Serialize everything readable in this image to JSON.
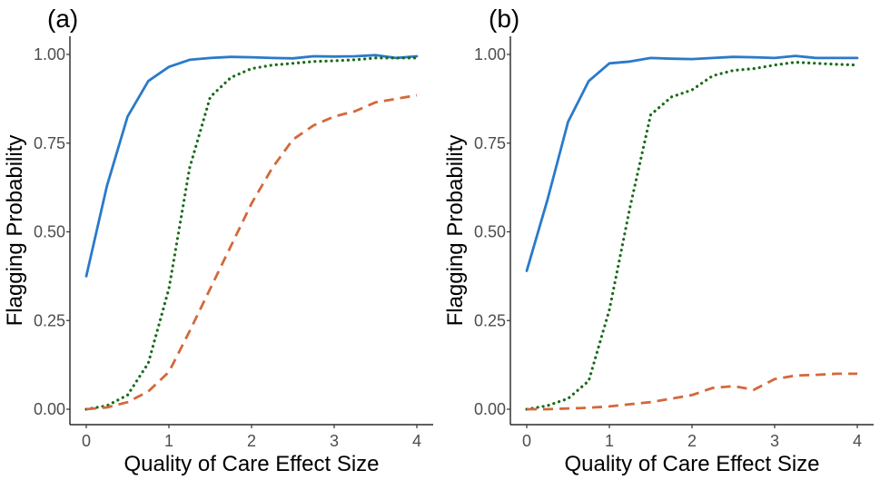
{
  "chart_data": [
    {
      "panel": "(a)",
      "type": "line",
      "xlabel": "Quality of Care Effect Size",
      "ylabel": "Flagging Probability",
      "xlim": [
        0,
        4
      ],
      "ylim": [
        0,
        1
      ],
      "x_ticks": [
        "0",
        "1",
        "2",
        "3",
        "4"
      ],
      "y_ticks": [
        "0.00",
        "0.25",
        "0.50",
        "0.75",
        "1.00"
      ],
      "x": [
        0,
        0.25,
        0.5,
        0.75,
        1.0,
        1.25,
        1.5,
        1.75,
        2.0,
        2.25,
        2.5,
        2.75,
        3.0,
        3.25,
        3.5,
        3.75,
        4.0
      ],
      "series": [
        {
          "name": "solid",
          "color": "#2a7ac9",
          "dash": "solid",
          "values": [
            0.375,
            0.63,
            0.825,
            0.925,
            0.965,
            0.985,
            0.99,
            0.993,
            0.992,
            0.99,
            0.989,
            0.995,
            0.994,
            0.995,
            0.998,
            0.99,
            0.995
          ]
        },
        {
          "name": "dotted",
          "color": "#1a6b1a",
          "dash": "dotted",
          "values": [
            0.0,
            0.01,
            0.04,
            0.13,
            0.34,
            0.68,
            0.88,
            0.935,
            0.96,
            0.97,
            0.975,
            0.98,
            0.982,
            0.985,
            0.99,
            0.99,
            0.99
          ]
        },
        {
          "name": "dashed",
          "color": "#d4683a",
          "dash": "dashed",
          "values": [
            0.0,
            0.005,
            0.02,
            0.05,
            0.105,
            0.22,
            0.34,
            0.46,
            0.58,
            0.68,
            0.76,
            0.8,
            0.825,
            0.84,
            0.865,
            0.875,
            0.885
          ]
        }
      ]
    },
    {
      "panel": "(b)",
      "type": "line",
      "xlabel": "Quality of Care Effect Size",
      "ylabel": "Flagging Probability",
      "xlim": [
        0,
        4
      ],
      "ylim": [
        0,
        1
      ],
      "x_ticks": [
        "0",
        "1",
        "2",
        "3",
        "4"
      ],
      "y_ticks": [
        "0.00",
        "0.25",
        "0.50",
        "0.75",
        "1.00"
      ],
      "x": [
        0,
        0.25,
        0.5,
        0.75,
        1.0,
        1.25,
        1.5,
        1.75,
        2.0,
        2.25,
        2.5,
        2.75,
        3.0,
        3.25,
        3.5,
        3.75,
        4.0
      ],
      "series": [
        {
          "name": "solid",
          "color": "#2a7ac9",
          "dash": "solid",
          "values": [
            0.39,
            0.59,
            0.81,
            0.925,
            0.975,
            0.98,
            0.99,
            0.988,
            0.987,
            0.99,
            0.993,
            0.992,
            0.99,
            0.996,
            0.99,
            0.99,
            0.99
          ]
        },
        {
          "name": "dotted",
          "color": "#1a6b1a",
          "dash": "dotted",
          "values": [
            0.0,
            0.01,
            0.03,
            0.08,
            0.28,
            0.57,
            0.83,
            0.88,
            0.9,
            0.94,
            0.955,
            0.96,
            0.97,
            0.978,
            0.975,
            0.972,
            0.97
          ]
        },
        {
          "name": "dashed",
          "color": "#d4683a",
          "dash": "dashed",
          "values": [
            0.0,
            0.0,
            0.002,
            0.004,
            0.008,
            0.014,
            0.02,
            0.03,
            0.04,
            0.06,
            0.065,
            0.055,
            0.085,
            0.095,
            0.097,
            0.1,
            0.1
          ]
        }
      ]
    }
  ]
}
